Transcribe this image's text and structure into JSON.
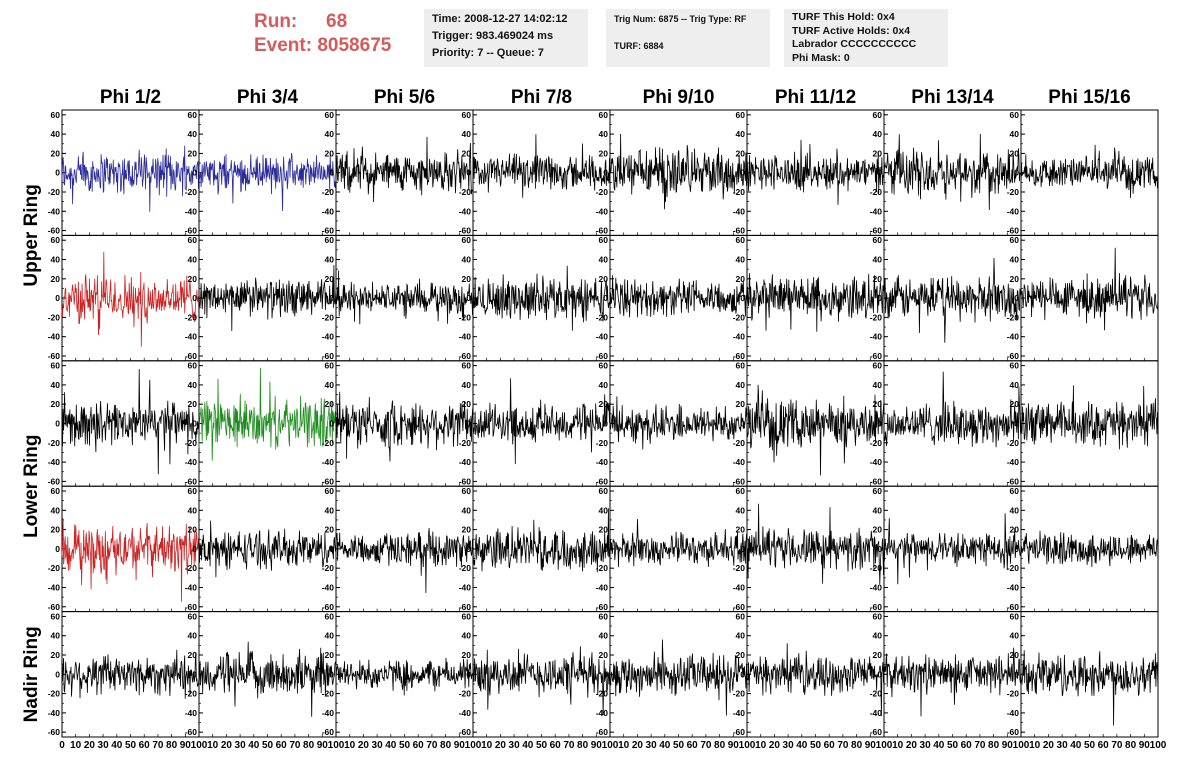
{
  "header": {
    "run_label": "Run:",
    "run_value": "68",
    "event_label": "Event:",
    "event_value": "8058675"
  },
  "info_boxes": {
    "time": "Time: 2008-12-27 14:02:12",
    "trigger": "Trigger: 983.469024 ms",
    "priority": "Priority: 7 -- Queue: 7",
    "trig_num": "Trig Num: 6875 -- Trig Type: RF",
    "turf": "TURF: 6884",
    "turf_hold": "TURF This Hold: 0x4",
    "turf_active": "TURF Active Holds: 0x4",
    "labrador": "Labrador CCCCCCCCCC",
    "phi_mask": "Phi Mask: 0"
  },
  "colors": {
    "blue": "#2b2b9a",
    "red": "#cc2222",
    "green": "#1e8c1e",
    "black": "#000000",
    "header_red": "#d65a5a",
    "info_bg": "#eeeeee"
  },
  "chart_data": {
    "type": "line",
    "columns": [
      "Phi 1/2",
      "Phi 3/4",
      "Phi 5/6",
      "Phi 7/8",
      "Phi 9/10",
      "Phi 11/12",
      "Phi 13/14",
      "Phi 15/16"
    ],
    "ring_labels": [
      "Upper Ring",
      "Lower Ring",
      "Nadir Ring"
    ],
    "rows": 5,
    "xlim": [
      0,
      100
    ],
    "ylim": [
      -65,
      65
    ],
    "y_ticks": [
      -60,
      -40,
      -20,
      0,
      20,
      40,
      60
    ],
    "x_tick_labels": [
      "0",
      "10",
      "20",
      "30",
      "40",
      "50",
      "60",
      "70",
      "80",
      "90",
      "100"
    ],
    "highlighted": [
      {
        "row": 0,
        "col": 0,
        "color": "blue"
      },
      {
        "row": 0,
        "col": 1,
        "color": "blue"
      },
      {
        "row": 1,
        "col": 0,
        "color": "red"
      },
      {
        "row": 2,
        "col": 1,
        "color": "green"
      },
      {
        "row": 3,
        "col": 0,
        "color": "red"
      }
    ],
    "samples_per_trace": 260,
    "typical_amplitude": 18
  }
}
